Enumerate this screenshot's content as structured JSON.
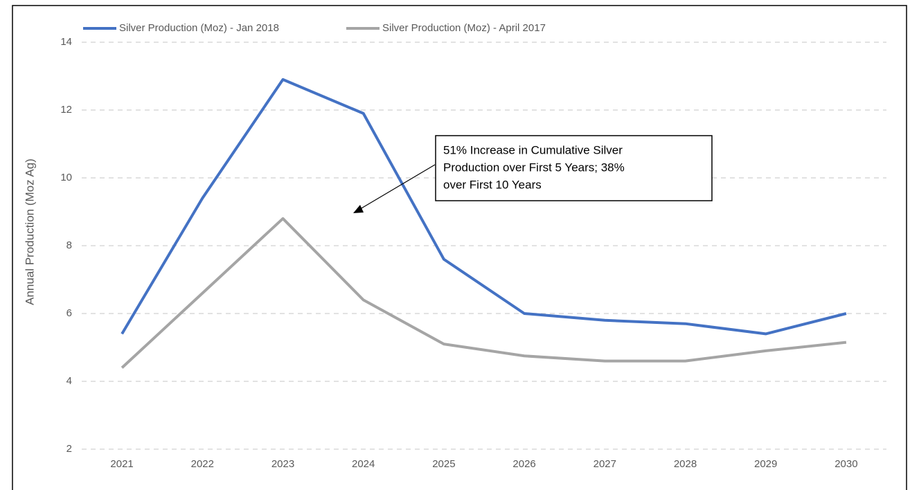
{
  "chart_data": {
    "type": "line",
    "y_label": "Annual Production (Moz Ag)",
    "categories": [
      "2021",
      "2022",
      "2023",
      "2024",
      "2025",
      "2026",
      "2027",
      "2028",
      "2029",
      "2030"
    ],
    "series": [
      {
        "name": "Silver Production (Moz) - Jan 2018",
        "color": "#4472c4",
        "values": [
          5.4,
          9.4,
          12.9,
          11.9,
          7.6,
          6.0,
          5.8,
          5.7,
          5.4,
          6.0
        ]
      },
      {
        "name": "Silver Production (Moz) - April 2017",
        "color": "#a5a5a5",
        "values": [
          4.4,
          6.6,
          8.8,
          6.4,
          5.1,
          4.75,
          4.6,
          4.6,
          4.9,
          5.15
        ]
      }
    ],
    "ylim": [
      2,
      14
    ],
    "yticks": [
      2,
      4,
      6,
      8,
      10,
      12,
      14
    ],
    "grid": true,
    "annotation": [
      "51% Increase in Cumulative Silver",
      "Production over First 5 Years; 38%",
      "over First 10 Years"
    ]
  }
}
